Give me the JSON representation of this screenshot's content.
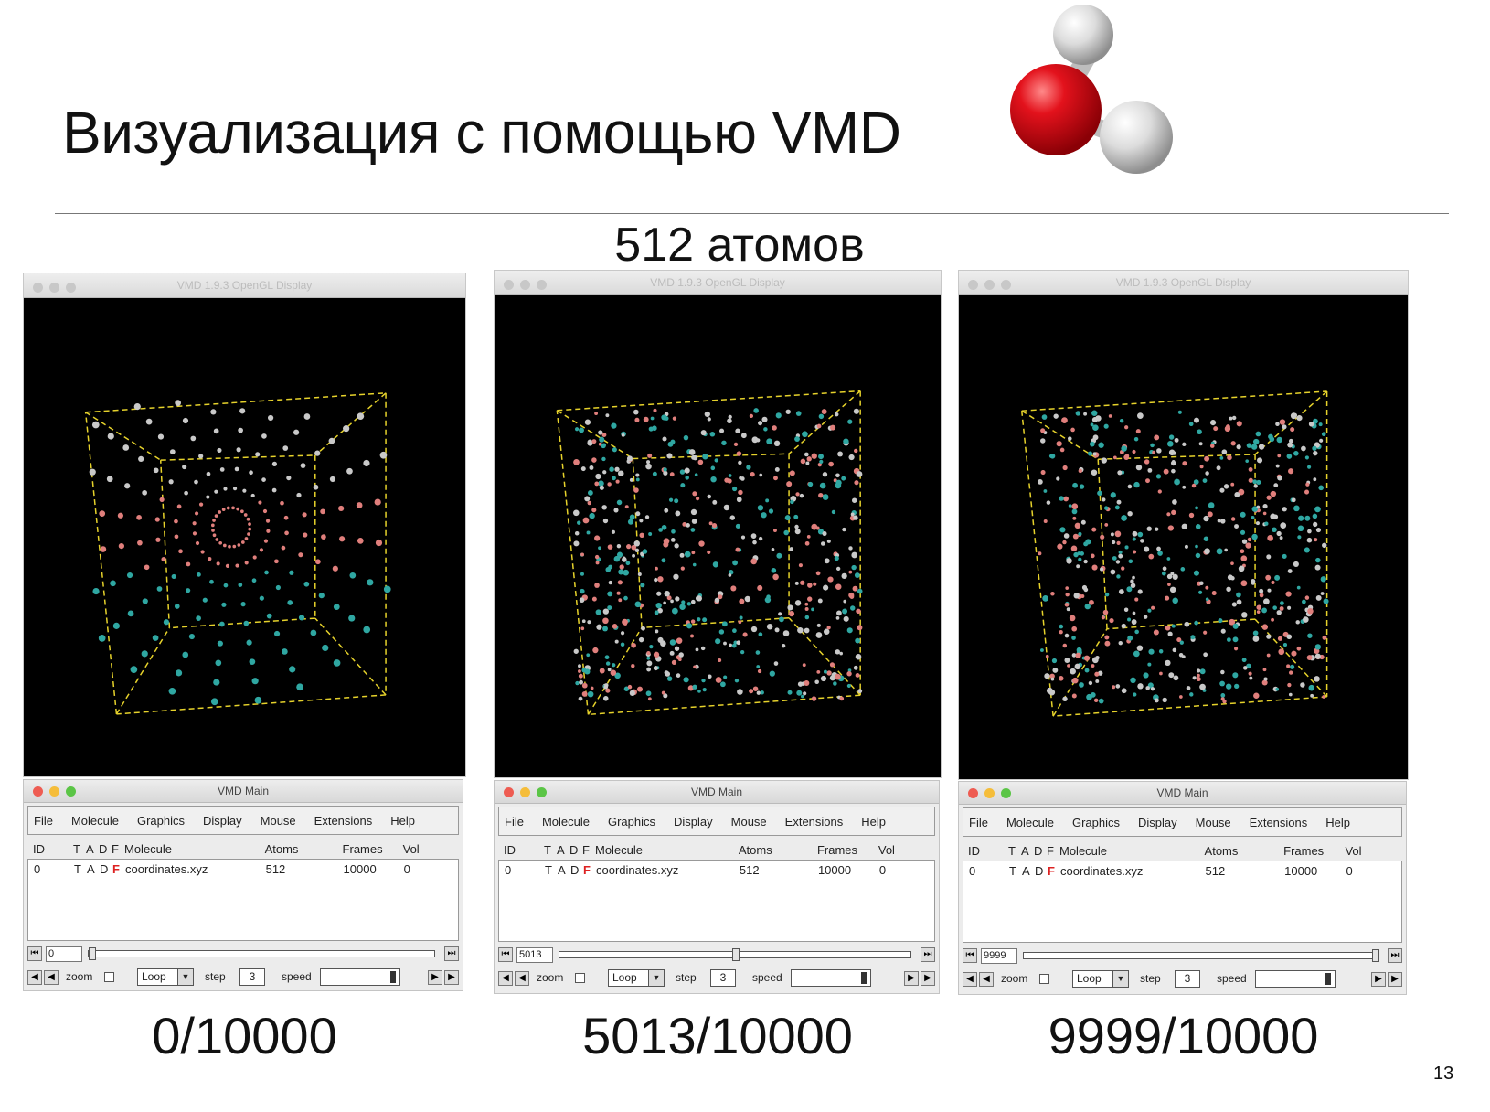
{
  "slide": {
    "title": "Визуализация с помощью VMD",
    "subtitle": "512 атомов",
    "page_number": "13",
    "molecule_icon": "water-molecule"
  },
  "windows_common": {
    "display_title": "VMD 1.9.3 OpenGL Display",
    "main_title": "VMD Main",
    "menu": [
      "File",
      "Molecule",
      "Graphics",
      "Display",
      "Mouse",
      "Extensions",
      "Help"
    ],
    "columns": {
      "id": "ID",
      "t": "T",
      "a": "A",
      "d": "D",
      "f": "F",
      "molecule": "Molecule",
      "atoms": "Atoms",
      "frames": "Frames",
      "vol": "Vol"
    },
    "row": {
      "id": "0",
      "t": "T",
      "a": "A",
      "d": "D",
      "f": "F",
      "molecule": "coordinates.xyz",
      "atoms": "512",
      "frames": "10000",
      "vol": "0"
    },
    "zoom_label": "zoom",
    "loop_label": "Loop",
    "step_label": "step",
    "step_value": "3",
    "speed_label": "speed"
  },
  "panels": [
    {
      "frame_field": "0",
      "frame_fraction": 0.0,
      "caption": "0/10000"
    },
    {
      "frame_field": "5013",
      "frame_fraction": 0.5013,
      "caption": "5013/10000"
    },
    {
      "frame_field": "9999",
      "frame_fraction": 0.9999,
      "caption": "9999/10000"
    }
  ],
  "colors": {
    "atom_white": "#c9c9c9",
    "atom_pink": "#e07f7c",
    "atom_teal": "#2fa7a2",
    "box": "#e6d22b"
  }
}
